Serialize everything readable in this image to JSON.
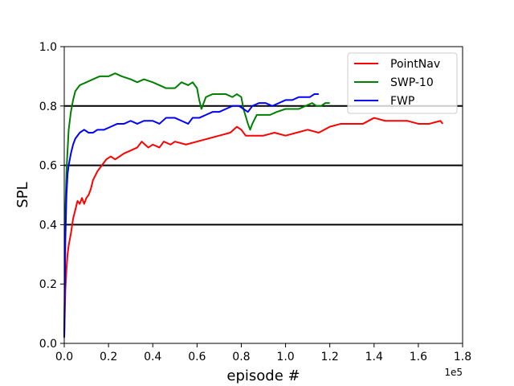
{
  "chart_data": {
    "type": "line",
    "xlabel": "episode #",
    "ylabel": "SPL",
    "x_offset_label": "1e5",
    "xlim": [
      0,
      1.8
    ],
    "ylim": [
      0,
      1.0
    ],
    "xticks": [
      0.0,
      0.2,
      0.4,
      0.6,
      0.8,
      1.0,
      1.2,
      1.4,
      1.6,
      1.8
    ],
    "xtick_labels": [
      "0.0",
      "0.2",
      "0.4",
      "0.6",
      "0.8",
      "1.0",
      "1.2",
      "1.4",
      "1.6",
      "1.8"
    ],
    "yticks": [
      0.0,
      0.2,
      0.4,
      0.6,
      0.8,
      1.0
    ],
    "ytick_labels": [
      "0.0",
      "0.2",
      "0.4",
      "0.6",
      "0.8",
      "1.0"
    ],
    "hlines": [
      0.4,
      0.6,
      0.8
    ],
    "legend_position": "top-right",
    "series": [
      {
        "name": "PointNav",
        "color": "#ff0000",
        "points": [
          [
            0,
            0.02
          ],
          [
            0.005,
            0.18
          ],
          [
            0.01,
            0.25
          ],
          [
            0.015,
            0.3
          ],
          [
            0.02,
            0.33
          ],
          [
            0.03,
            0.37
          ],
          [
            0.04,
            0.42
          ],
          [
            0.05,
            0.45
          ],
          [
            0.06,
            0.48
          ],
          [
            0.07,
            0.47
          ],
          [
            0.08,
            0.49
          ],
          [
            0.09,
            0.47
          ],
          [
            0.1,
            0.49
          ],
          [
            0.11,
            0.5
          ],
          [
            0.12,
            0.52
          ],
          [
            0.13,
            0.55
          ],
          [
            0.15,
            0.58
          ],
          [
            0.17,
            0.6
          ],
          [
            0.19,
            0.62
          ],
          [
            0.21,
            0.63
          ],
          [
            0.23,
            0.62
          ],
          [
            0.25,
            0.63
          ],
          [
            0.27,
            0.64
          ],
          [
            0.3,
            0.65
          ],
          [
            0.33,
            0.66
          ],
          [
            0.35,
            0.68
          ],
          [
            0.38,
            0.66
          ],
          [
            0.4,
            0.67
          ],
          [
            0.43,
            0.66
          ],
          [
            0.45,
            0.68
          ],
          [
            0.48,
            0.67
          ],
          [
            0.5,
            0.68
          ],
          [
            0.55,
            0.67
          ],
          [
            0.6,
            0.68
          ],
          [
            0.65,
            0.69
          ],
          [
            0.7,
            0.7
          ],
          [
            0.75,
            0.71
          ],
          [
            0.78,
            0.73
          ],
          [
            0.8,
            0.72
          ],
          [
            0.82,
            0.7
          ],
          [
            0.85,
            0.7
          ],
          [
            0.9,
            0.7
          ],
          [
            0.95,
            0.71
          ],
          [
            1.0,
            0.7
          ],
          [
            1.05,
            0.71
          ],
          [
            1.1,
            0.72
          ],
          [
            1.15,
            0.71
          ],
          [
            1.2,
            0.73
          ],
          [
            1.25,
            0.74
          ],
          [
            1.3,
            0.74
          ],
          [
            1.35,
            0.74
          ],
          [
            1.4,
            0.76
          ],
          [
            1.45,
            0.75
          ],
          [
            1.5,
            0.75
          ],
          [
            1.55,
            0.75
          ],
          [
            1.6,
            0.74
          ],
          [
            1.65,
            0.74
          ],
          [
            1.7,
            0.75
          ],
          [
            1.71,
            0.74
          ]
        ]
      },
      {
        "name": "SWP-10",
        "color": "#008000",
        "points": [
          [
            0,
            0.02
          ],
          [
            0.005,
            0.45
          ],
          [
            0.01,
            0.58
          ],
          [
            0.015,
            0.65
          ],
          [
            0.02,
            0.72
          ],
          [
            0.03,
            0.78
          ],
          [
            0.04,
            0.82
          ],
          [
            0.05,
            0.85
          ],
          [
            0.07,
            0.87
          ],
          [
            0.1,
            0.88
          ],
          [
            0.13,
            0.89
          ],
          [
            0.16,
            0.9
          ],
          [
            0.2,
            0.9
          ],
          [
            0.23,
            0.91
          ],
          [
            0.26,
            0.9
          ],
          [
            0.3,
            0.89
          ],
          [
            0.33,
            0.88
          ],
          [
            0.36,
            0.89
          ],
          [
            0.4,
            0.88
          ],
          [
            0.43,
            0.87
          ],
          [
            0.46,
            0.86
          ],
          [
            0.5,
            0.86
          ],
          [
            0.53,
            0.88
          ],
          [
            0.56,
            0.87
          ],
          [
            0.58,
            0.88
          ],
          [
            0.6,
            0.86
          ],
          [
            0.61,
            0.82
          ],
          [
            0.62,
            0.79
          ],
          [
            0.64,
            0.83
          ],
          [
            0.67,
            0.84
          ],
          [
            0.7,
            0.84
          ],
          [
            0.73,
            0.84
          ],
          [
            0.76,
            0.83
          ],
          [
            0.78,
            0.84
          ],
          [
            0.8,
            0.83
          ],
          [
            0.81,
            0.79
          ],
          [
            0.83,
            0.74
          ],
          [
            0.84,
            0.72
          ],
          [
            0.85,
            0.74
          ],
          [
            0.87,
            0.77
          ],
          [
            0.9,
            0.77
          ],
          [
            0.93,
            0.77
          ],
          [
            0.96,
            0.78
          ],
          [
            1.0,
            0.79
          ],
          [
            1.03,
            0.79
          ],
          [
            1.06,
            0.79
          ],
          [
            1.09,
            0.8
          ],
          [
            1.12,
            0.81
          ],
          [
            1.14,
            0.8
          ],
          [
            1.16,
            0.8
          ],
          [
            1.18,
            0.81
          ],
          [
            1.2,
            0.81
          ]
        ]
      },
      {
        "name": "FWP",
        "color": "#0000ff",
        "points": [
          [
            0,
            0.02
          ],
          [
            0.005,
            0.35
          ],
          [
            0.01,
            0.5
          ],
          [
            0.015,
            0.57
          ],
          [
            0.02,
            0.6
          ],
          [
            0.03,
            0.64
          ],
          [
            0.04,
            0.67
          ],
          [
            0.05,
            0.69
          ],
          [
            0.07,
            0.71
          ],
          [
            0.09,
            0.72
          ],
          [
            0.11,
            0.71
          ],
          [
            0.13,
            0.71
          ],
          [
            0.15,
            0.72
          ],
          [
            0.18,
            0.72
          ],
          [
            0.21,
            0.73
          ],
          [
            0.24,
            0.74
          ],
          [
            0.27,
            0.74
          ],
          [
            0.3,
            0.75
          ],
          [
            0.33,
            0.74
          ],
          [
            0.36,
            0.75
          ],
          [
            0.4,
            0.75
          ],
          [
            0.43,
            0.74
          ],
          [
            0.46,
            0.76
          ],
          [
            0.5,
            0.76
          ],
          [
            0.53,
            0.75
          ],
          [
            0.56,
            0.74
          ],
          [
            0.58,
            0.76
          ],
          [
            0.61,
            0.76
          ],
          [
            0.64,
            0.77
          ],
          [
            0.67,
            0.78
          ],
          [
            0.7,
            0.78
          ],
          [
            0.73,
            0.79
          ],
          [
            0.76,
            0.8
          ],
          [
            0.79,
            0.8
          ],
          [
            0.81,
            0.79
          ],
          [
            0.83,
            0.78
          ],
          [
            0.85,
            0.8
          ],
          [
            0.88,
            0.81
          ],
          [
            0.91,
            0.81
          ],
          [
            0.94,
            0.8
          ],
          [
            0.97,
            0.81
          ],
          [
            1.0,
            0.82
          ],
          [
            1.03,
            0.82
          ],
          [
            1.06,
            0.83
          ],
          [
            1.09,
            0.83
          ],
          [
            1.11,
            0.83
          ],
          [
            1.13,
            0.84
          ],
          [
            1.15,
            0.84
          ]
        ]
      }
    ]
  }
}
